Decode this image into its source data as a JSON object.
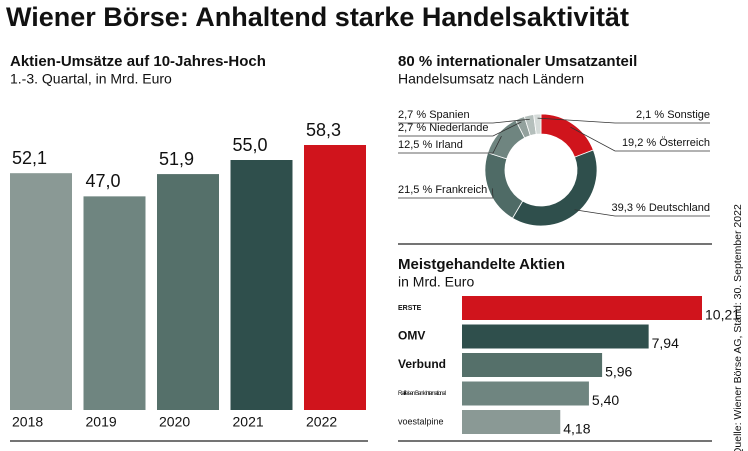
{
  "title": "Wiener Börse: Anhaltend starke Handelsaktivität",
  "source": "Quelle: Wiener Börse AG, Stand: 30. September 2022",
  "chart_data": [
    {
      "type": "bar",
      "title": "Aktien-Umsätze auf 10-Jahres-Hoch",
      "subtitle": "1.-3. Quartal, in Mrd. Euro",
      "categories": [
        "2018",
        "2019",
        "2020",
        "2021",
        "2022"
      ],
      "values": [
        52.1,
        47.0,
        51.9,
        55.0,
        58.3
      ],
      "value_labels": [
        "52,1",
        "47,0",
        "51,9",
        "55,0",
        "58,3"
      ],
      "colors": [
        "#8a9995",
        "#6f8580",
        "#55706a",
        "#2f4f4c",
        "#d0141c"
      ]
    },
    {
      "type": "pie",
      "title": "80 % internationaler Umsatzanteil",
      "subtitle": "Handelsumsatz nach Ländern",
      "categories": [
        "Österreich",
        "Deutschland",
        "Frankreich",
        "Irland",
        "Niederlande",
        "Spanien",
        "Sonstige"
      ],
      "values": [
        19.2,
        39.3,
        21.5,
        12.5,
        2.7,
        2.7,
        2.1
      ],
      "value_labels": [
        "19,2 %",
        "39,3 %",
        "21,5 %",
        "12,5 %",
        "2,7 %",
        "2,7 %",
        "2,1 %"
      ],
      "colors": [
        "#d0141c",
        "#2f4f4c",
        "#4f6b66",
        "#6f8580",
        "#93a19d",
        "#b5bfbc",
        "#d5dbd9"
      ]
    },
    {
      "type": "barh",
      "title": "Meistgehandelte Aktien",
      "subtitle": "in Mrd. Euro",
      "categories": [
        "ERSTE",
        "OMV",
        "Verbund",
        "Raiffeisen Bank International",
        "voestalpine"
      ],
      "values": [
        10.21,
        7.94,
        5.96,
        5.4,
        4.18
      ],
      "value_labels": [
        "10,21",
        "7,94",
        "5,96",
        "5,40",
        "4,18"
      ],
      "colors": [
        "#d0141c",
        "#2f4f4c",
        "#55706a",
        "#6f8580",
        "#8a9995"
      ]
    }
  ]
}
